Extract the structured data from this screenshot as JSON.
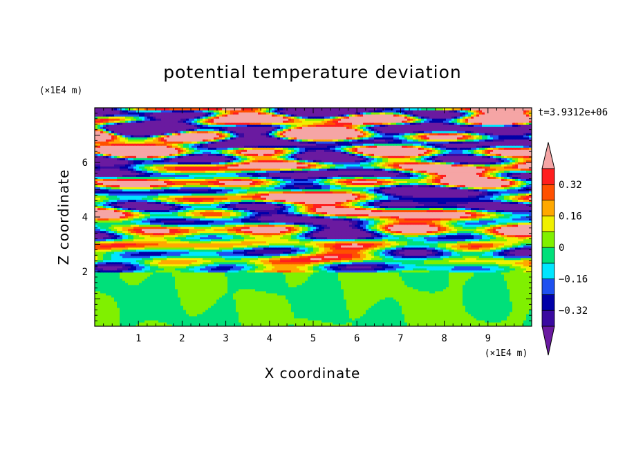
{
  "chart_data": {
    "type": "heatmap",
    "title": "potential temperature deviation",
    "xlabel": "X coordinate",
    "ylabel": "Z coordinate",
    "x_unit": "(×1E4 m)",
    "y_unit": "(×1E4 m)",
    "time_label": "t=3.9312e+06",
    "xlim": [
      0,
      10
    ],
    "ylim": [
      0,
      8
    ],
    "x_ticks": [
      "1",
      "2",
      "3",
      "4",
      "5",
      "6",
      "7",
      "8",
      "9"
    ],
    "y_ticks": [
      "2",
      "4",
      "6"
    ],
    "colorbar": {
      "levels": [
        -0.48,
        -0.4,
        -0.32,
        -0.24,
        -0.16,
        -0.08,
        0,
        0.08,
        0.16,
        0.24,
        0.32,
        0.4,
        0.48
      ],
      "labels": [
        "0.32",
        "0.16",
        "0",
        "−0.16",
        "−0.32"
      ],
      "label_values": [
        0.32,
        0.16,
        0,
        -0.16,
        -0.32
      ],
      "colors": [
        "#6a1aa0",
        "#3a0aa0",
        "#0000a8",
        "#1e50f0",
        "#00e6ff",
        "#00e07a",
        "#80f000",
        "#f0f000",
        "#ffa800",
        "#ff5000",
        "#ff1e1e",
        "#f5a5a5"
      ],
      "under_color": "#6a1aa0",
      "over_color": "#f5a5a5"
    },
    "regions": {
      "lower_layer_z_top": 2.0,
      "lower_layer_range": [
        -0.08,
        0.08
      ]
    }
  }
}
